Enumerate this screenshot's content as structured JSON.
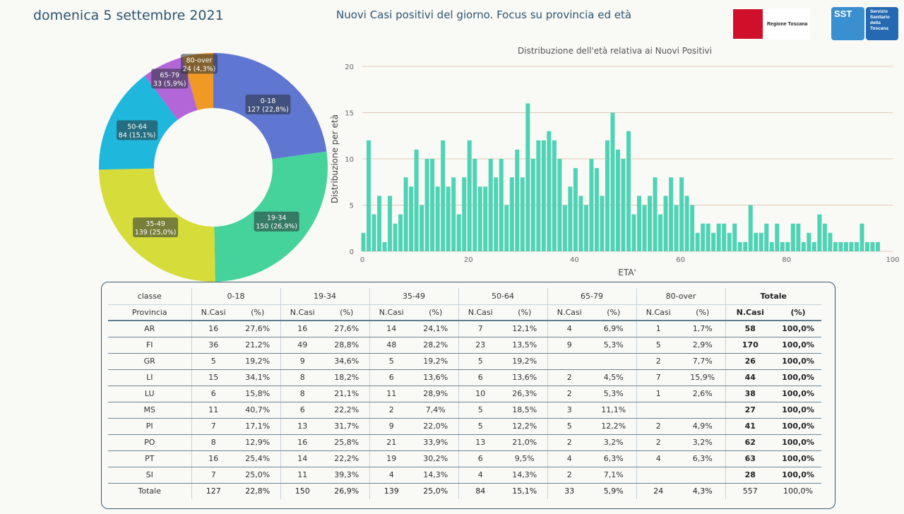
{
  "header": {
    "date": "domenica 5 settembre 2021",
    "title": "Nuovi Casi positivi del giorno. Focus su provincia ed età",
    "logo_regione": "Regione Toscana",
    "logo_sst_short": "SST",
    "logo_sst_long": "Servizio Sanitario della Toscana"
  },
  "colors": {
    "0-18": "#6077d1",
    "19-34": "#45d39b",
    "35-49": "#d6dc3a",
    "50-64": "#1fb8dc",
    "65-79": "#b266d8",
    "80-over": "#f09a25",
    "hist": "#4fd3b5"
  },
  "chart_data": [
    {
      "type": "pie",
      "donut": true,
      "labels": [
        "0-18",
        "19-34",
        "35-49",
        "50-64",
        "65-79",
        "80-over"
      ],
      "values": [
        127,
        150,
        139,
        84,
        33,
        24
      ],
      "value_labels": [
        "127 (22,8%)",
        "150 (26,9%)",
        "139 (25,0%)",
        "84 (15,1%)",
        "33 (5,9%)",
        "24 (4,3%)"
      ]
    },
    {
      "type": "bar",
      "title": "Distribuzione dell'età relativa ai Nuovi Positivi",
      "xlabel": "ETA'",
      "ylabel": "Distribuzione per età",
      "xlim": [
        0,
        100
      ],
      "ylim": [
        0,
        20
      ],
      "xticks": [
        0,
        20,
        40,
        60,
        80,
        100
      ],
      "yticks": [
        0,
        5,
        10,
        15,
        20
      ],
      "x": [
        0,
        1,
        2,
        3,
        4,
        5,
        6,
        7,
        8,
        9,
        10,
        11,
        12,
        13,
        14,
        15,
        16,
        17,
        18,
        19,
        20,
        21,
        22,
        23,
        24,
        25,
        26,
        27,
        28,
        29,
        30,
        31,
        32,
        33,
        34,
        35,
        36,
        37,
        38,
        39,
        40,
        41,
        42,
        43,
        44,
        45,
        46,
        47,
        48,
        49,
        50,
        51,
        52,
        53,
        54,
        55,
        56,
        57,
        58,
        59,
        60,
        61,
        62,
        63,
        64,
        65,
        66,
        67,
        68,
        69,
        70,
        71,
        72,
        73,
        74,
        75,
        76,
        77,
        78,
        79,
        80,
        81,
        82,
        83,
        84,
        85,
        86,
        87,
        88,
        89,
        90,
        91,
        92,
        93,
        94,
        95,
        96,
        97
      ],
      "values": [
        2,
        12,
        4,
        6,
        1,
        6,
        3,
        4,
        8,
        7,
        11,
        5,
        10,
        10,
        7,
        12,
        7,
        8,
        4,
        8,
        12,
        10,
        7,
        7,
        10,
        8,
        10,
        5,
        8,
        11,
        8,
        16,
        10,
        12,
        12,
        13,
        12,
        10,
        5,
        7,
        9,
        6,
        5,
        10,
        9,
        6,
        12,
        15,
        11,
        10,
        13,
        4,
        6,
        5,
        6,
        8,
        4,
        6,
        8,
        5,
        8,
        6,
        5,
        2,
        3,
        3,
        2,
        3,
        3,
        2,
        3,
        1,
        1,
        5,
        2,
        2,
        3,
        1,
        3,
        1,
        1,
        3,
        3,
        1,
        2,
        1,
        4,
        3,
        2,
        1,
        1,
        1,
        1,
        1,
        3,
        1,
        1,
        1
      ],
      "grid": true
    },
    {
      "type": "table",
      "group_headers": [
        "classe",
        "0-18",
        "19-34",
        "35-49",
        "50-64",
        "65-79",
        "80-over",
        "Totale"
      ],
      "sub_headers": [
        "Provincia",
        "N.Casi",
        "(%)",
        "N.Casi",
        "(%)",
        "N.Casi",
        "(%)",
        "N.Casi",
        "(%)",
        "N.Casi",
        "(%)",
        "N.Casi",
        "(%)",
        "N.Casi",
        "(%)"
      ],
      "rows": [
        [
          "AR",
          "16",
          "27,6%",
          "16",
          "27,6%",
          "14",
          "24,1%",
          "7",
          "12,1%",
          "4",
          "6,9%",
          "1",
          "1,7%",
          "58",
          "100,0%"
        ],
        [
          "FI",
          "36",
          "21,2%",
          "49",
          "28,8%",
          "48",
          "28,2%",
          "23",
          "13,5%",
          "9",
          "5,3%",
          "5",
          "2,9%",
          "170",
          "100,0%"
        ],
        [
          "GR",
          "5",
          "19,2%",
          "9",
          "34,6%",
          "5",
          "19,2%",
          "5",
          "19,2%",
          "",
          "",
          "2",
          "7,7%",
          "26",
          "100,0%"
        ],
        [
          "LI",
          "15",
          "34,1%",
          "8",
          "18,2%",
          "6",
          "13,6%",
          "6",
          "13,6%",
          "2",
          "4,5%",
          "7",
          "15,9%",
          "44",
          "100,0%"
        ],
        [
          "LU",
          "6",
          "15,8%",
          "8",
          "21,1%",
          "11",
          "28,9%",
          "10",
          "26,3%",
          "2",
          "5,3%",
          "1",
          "2,6%",
          "38",
          "100,0%"
        ],
        [
          "MS",
          "11",
          "40,7%",
          "6",
          "22,2%",
          "2",
          "7,4%",
          "5",
          "18,5%",
          "3",
          "11,1%",
          "",
          "",
          "27",
          "100,0%"
        ],
        [
          "PI",
          "7",
          "17,1%",
          "13",
          "31,7%",
          "9",
          "22,0%",
          "5",
          "12,2%",
          "5",
          "12,2%",
          "2",
          "4,9%",
          "41",
          "100,0%"
        ],
        [
          "PO",
          "8",
          "12,9%",
          "16",
          "25,8%",
          "21",
          "33,9%",
          "13",
          "21,0%",
          "2",
          "3,2%",
          "2",
          "3,2%",
          "62",
          "100,0%"
        ],
        [
          "PT",
          "16",
          "25,4%",
          "14",
          "22,2%",
          "19",
          "30,2%",
          "6",
          "9,5%",
          "4",
          "6,3%",
          "4",
          "6,3%",
          "63",
          "100,0%"
        ],
        [
          "SI",
          "7",
          "25,0%",
          "11",
          "39,3%",
          "4",
          "14,3%",
          "4",
          "14,3%",
          "2",
          "7,1%",
          "",
          "",
          "28",
          "100,0%"
        ]
      ],
      "total": [
        "Totale",
        "127",
        "22,8%",
        "150",
        "26,9%",
        "139",
        "25,0%",
        "84",
        "15,1%",
        "33",
        "5,9%",
        "24",
        "4,3%",
        "557",
        "100,0%"
      ]
    }
  ]
}
